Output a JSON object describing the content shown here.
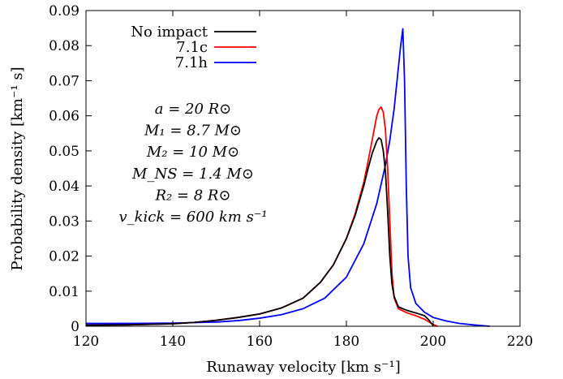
{
  "chart_data": {
    "type": "line",
    "title": "",
    "xlabel": "Runaway velocity [km s⁻¹]",
    "ylabel": "Probability density [km⁻¹ s]",
    "xlim": [
      120,
      220
    ],
    "ylim": [
      0,
      0.09
    ],
    "grid": false,
    "legend": "top-left",
    "x_ticks": [
      "120",
      "140",
      "160",
      "180",
      "200",
      "220"
    ],
    "y_ticks": [
      "0",
      "0.01",
      "0.02",
      "0.03",
      "0.04",
      "0.05",
      "0.06",
      "0.07",
      "0.08",
      "0.09"
    ],
    "series": [
      {
        "name": "No impact",
        "color": "#000000",
        "x": [
          120,
          130,
          140,
          145,
          150,
          155,
          160,
          165,
          170,
          174,
          177,
          180,
          182,
          184,
          185,
          186,
          187,
          187.5,
          188,
          188.5,
          189,
          189.5,
          190,
          190.5,
          191,
          192,
          194,
          196,
          198,
          199,
          200
        ],
        "y": [
          0.0003,
          0.0004,
          0.0007,
          0.0011,
          0.0017,
          0.0025,
          0.0035,
          0.0052,
          0.008,
          0.0125,
          0.0175,
          0.025,
          0.0315,
          0.04,
          0.045,
          0.0495,
          0.0528,
          0.0537,
          0.0532,
          0.05,
          0.044,
          0.033,
          0.02,
          0.012,
          0.0085,
          0.0055,
          0.0045,
          0.0038,
          0.003,
          0.0018,
          0.0002
        ]
      },
      {
        "name": "7.1c",
        "color": "#ff0000",
        "x": [
          120,
          130,
          140,
          145,
          150,
          155,
          160,
          165,
          170,
          174,
          177,
          180,
          182,
          184,
          185,
          186,
          187,
          187.5,
          188,
          188.5,
          189,
          189.5,
          190,
          190.5,
          191,
          192,
          194,
          196,
          198,
          200,
          201
        ],
        "y": [
          0.0003,
          0.0004,
          0.0007,
          0.0011,
          0.0017,
          0.0025,
          0.0035,
          0.0052,
          0.008,
          0.0125,
          0.0175,
          0.025,
          0.032,
          0.041,
          0.047,
          0.0535,
          0.06,
          0.0618,
          0.0625,
          0.061,
          0.056,
          0.045,
          0.03,
          0.015,
          0.008,
          0.005,
          0.0038,
          0.003,
          0.002,
          0.0005,
          0
        ]
      },
      {
        "name": "7.1h",
        "color": "#0000ff",
        "x": [
          120,
          130,
          140,
          150,
          155,
          160,
          165,
          170,
          175,
          180,
          184,
          187,
          189,
          190,
          191,
          192,
          192.5,
          193,
          193.4,
          193.8,
          194.2,
          194.8,
          196,
          198,
          200,
          203,
          206,
          210,
          213
        ],
        "y": [
          0.0008,
          0.0008,
          0.0009,
          0.0012,
          0.0016,
          0.0023,
          0.0033,
          0.005,
          0.008,
          0.014,
          0.0235,
          0.035,
          0.046,
          0.053,
          0.062,
          0.074,
          0.08,
          0.0848,
          0.07,
          0.04,
          0.02,
          0.011,
          0.0065,
          0.004,
          0.0025,
          0.0015,
          0.0008,
          0.0003,
          0
        ]
      }
    ],
    "annotations": [
      "a = 20 R⊙",
      "M₁ = 8.7 M⊙",
      "M₂ = 10 M⊙",
      "M_NS = 1.4 M⊙",
      "R₂ = 8 R⊙",
      "v_kick = 600 km s⁻¹"
    ]
  }
}
